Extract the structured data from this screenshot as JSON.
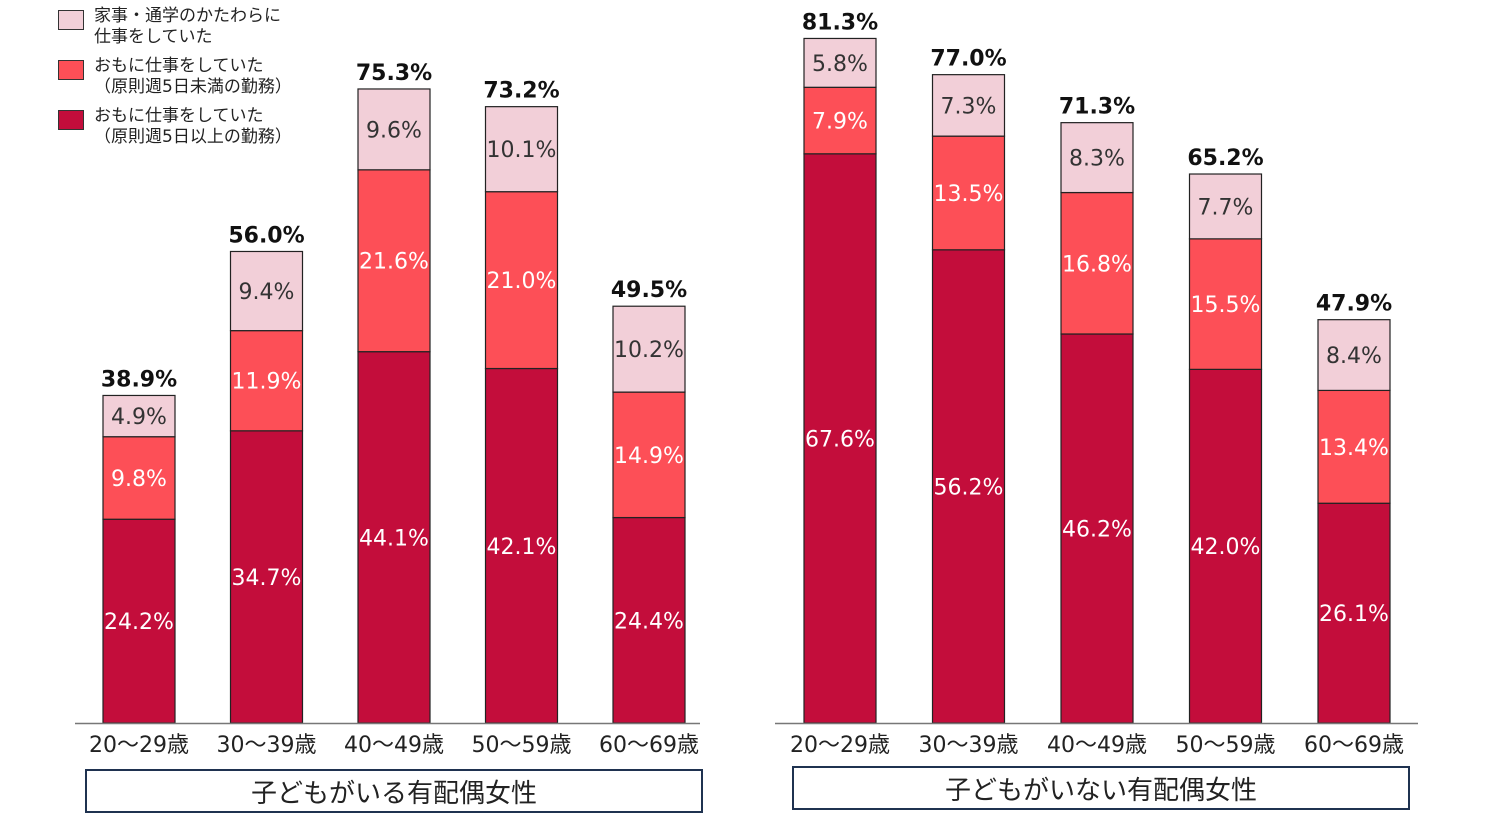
{
  "colors": {
    "full_time": "#c30d3b",
    "part_time": "#fd4f57",
    "side_job": "#f2cfd8",
    "border": "#222222",
    "box_border": "#1f3250"
  },
  "legend": [
    {
      "key": "side_job",
      "label": "家事・通学のかたわらに\n仕事をしていた"
    },
    {
      "key": "part_time",
      "label": "おもに仕事をしていた\n（原則週5日未満の勤務）"
    },
    {
      "key": "full_time",
      "label": "おもに仕事をしていた\n（原則週5日以上の勤務）"
    }
  ],
  "chart_data": [
    {
      "type": "bar",
      "stacked": true,
      "group_label": "子どもがいる有配偶女性",
      "categories": [
        "20～29歳",
        "30～39歳",
        "40～49歳",
        "50～59歳",
        "60～69歳"
      ],
      "series": [
        {
          "name": "おもに仕事をしていた（原則週5日以上の勤務）",
          "key": "full_time",
          "values": [
            24.2,
            34.7,
            44.1,
            42.1,
            24.4
          ],
          "labels": [
            "24.2%",
            "34.7%",
            "44.1%",
            "42.1%",
            "24.4%"
          ]
        },
        {
          "name": "おもに仕事をしていた（原則週5日未満の勤務）",
          "key": "part_time",
          "values": [
            9.8,
            11.9,
            21.6,
            21.0,
            14.9
          ],
          "labels": [
            "9.8%",
            "11.9%",
            "21.6%",
            "21.0%",
            "14.9%"
          ]
        },
        {
          "name": "家事・通学のかたわらに仕事をしていた",
          "key": "side_job",
          "values": [
            4.9,
            9.4,
            9.6,
            10.1,
            10.2
          ],
          "labels": [
            "4.9%",
            "9.4%",
            "9.6%",
            "10.1%",
            "10.2%"
          ]
        }
      ],
      "totals": [
        "38.9%",
        "56.0%",
        "75.3%",
        "73.2%",
        "49.5%"
      ],
      "ylim": [
        0,
        100
      ],
      "grid": false
    },
    {
      "type": "bar",
      "stacked": true,
      "group_label": "子どもがいない有配偶女性",
      "categories": [
        "20～29歳",
        "30～39歳",
        "40～49歳",
        "50～59歳",
        "60～69歳"
      ],
      "series": [
        {
          "name": "おもに仕事をしていた（原則週5日以上の勤務）",
          "key": "full_time",
          "values": [
            67.6,
            56.2,
            46.2,
            42.0,
            26.1
          ],
          "labels": [
            "67.6%",
            "56.2%",
            "46.2%",
            "42.0%",
            "26.1%"
          ]
        },
        {
          "name": "おもに仕事をしていた（原則週5日未満の勤務）",
          "key": "part_time",
          "values": [
            7.9,
            13.5,
            16.8,
            15.5,
            13.4
          ],
          "labels": [
            "7.9%",
            "13.5%",
            "16.8%",
            "15.5%",
            "13.4%"
          ]
        },
        {
          "name": "家事・通学のかたわらに仕事をしていた",
          "key": "side_job",
          "values": [
            5.8,
            7.3,
            8.3,
            7.7,
            8.4
          ],
          "labels": [
            "5.8%",
            "7.3%",
            "8.3%",
            "7.7%",
            "8.4%"
          ]
        }
      ],
      "totals": [
        "81.3%",
        "77.0%",
        "71.3%",
        "65.2%",
        "47.9%"
      ],
      "ylim": [
        0,
        100
      ],
      "grid": false
    }
  ]
}
